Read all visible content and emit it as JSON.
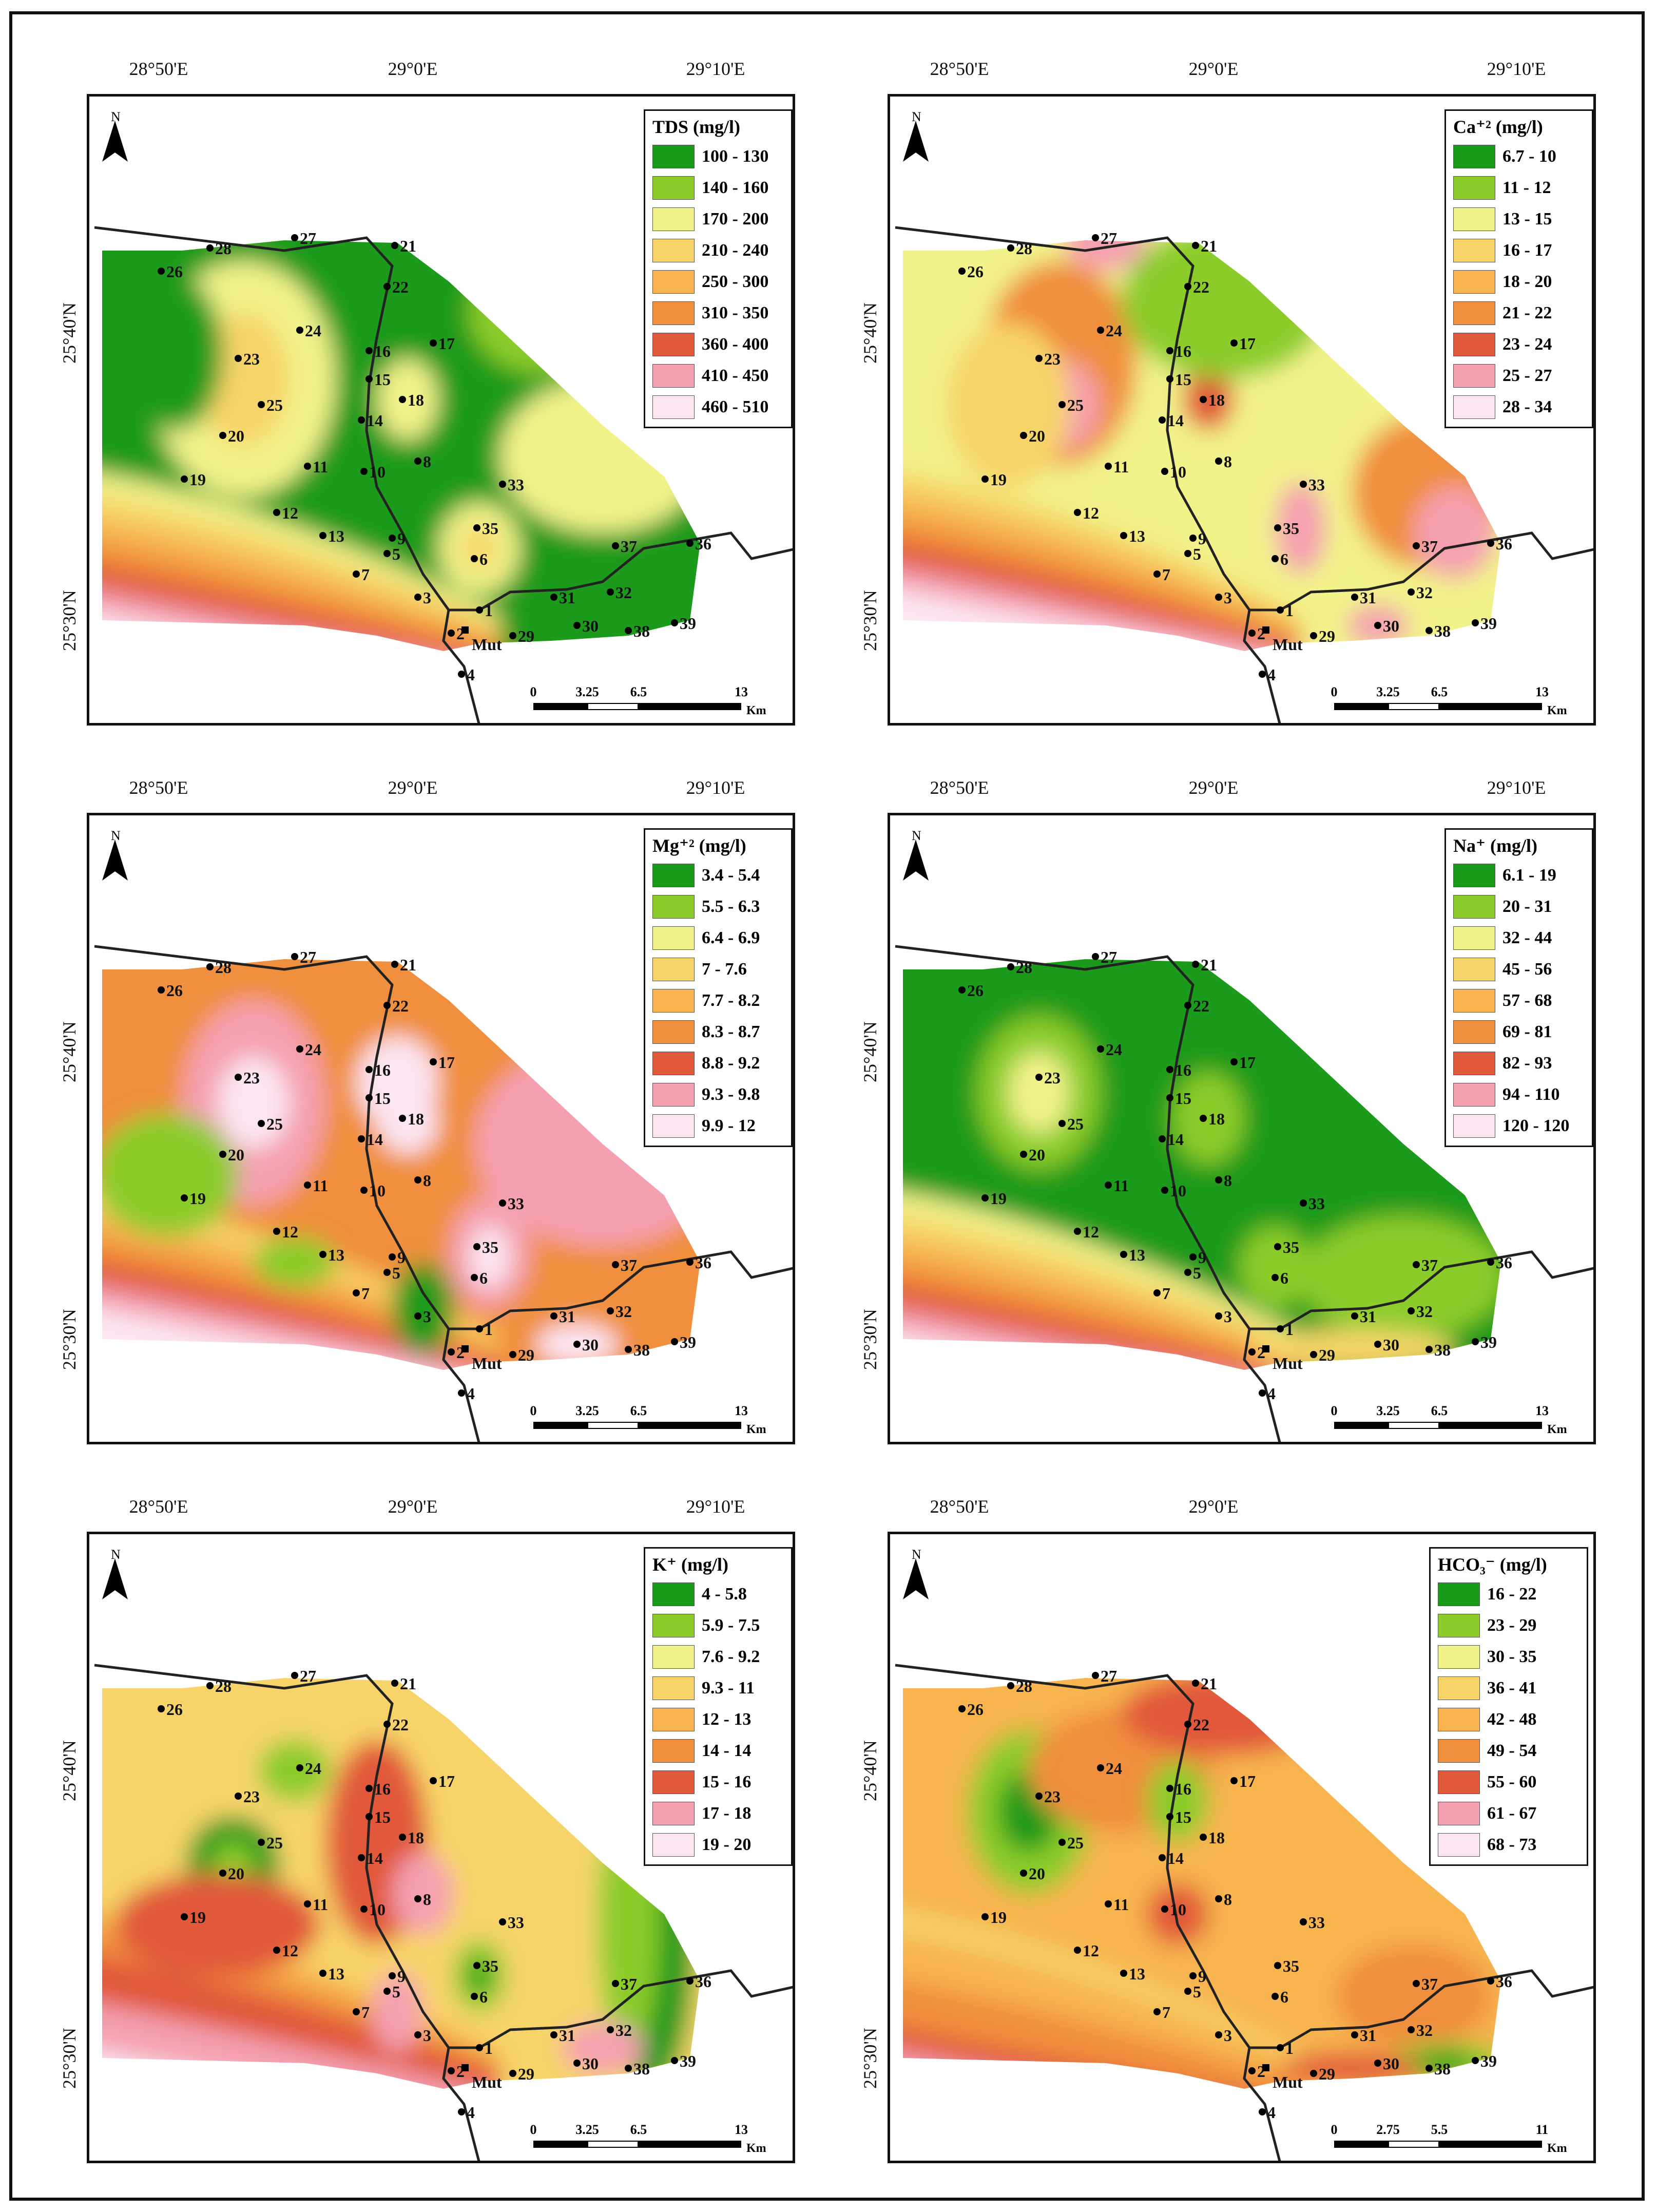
{
  "figure": {
    "town_label": "Mut",
    "north_label": "N",
    "wells": [
      "1",
      "2",
      "3",
      "4",
      "5",
      "6",
      "7",
      "8",
      "9",
      "10",
      "11",
      "12",
      "13",
      "14",
      "15",
      "16",
      "17",
      "18",
      "19",
      "20",
      "21",
      "22",
      "23",
      "24",
      "25",
      "26",
      "27",
      "28",
      "29",
      "30",
      "31",
      "32",
      "33",
      "35",
      "36",
      "37",
      "38",
      "39"
    ],
    "panels": [
      {
        "id": "tds",
        "legend_title": "TDS (mg/l)",
        "lon_labels": [
          "28°50'E",
          "29°0'E",
          "29°10'E"
        ],
        "lat_labels": [
          "25°40'N",
          "25°30'N"
        ],
        "classes": [
          {
            "label": "100 - 130",
            "color": "#1a9a1a"
          },
          {
            "label": "140 - 160",
            "color": "#8ccc2c"
          },
          {
            "label": "170 - 200",
            "color": "#f2f28a"
          },
          {
            "label": "210 - 240",
            "color": "#f6d469"
          },
          {
            "label": "250 - 300",
            "color": "#f7b450"
          },
          {
            "label": "310 - 350",
            "color": "#f08f3c"
          },
          {
            "label": "360 - 400",
            "color": "#e1583a"
          },
          {
            "label": "410 - 450",
            "color": "#f4a0b0"
          },
          {
            "label": "460 - 510",
            "color": "#fce6f2"
          }
        ],
        "scale": {
          "ticks": [
            "0",
            "3.25",
            "6.5",
            "13"
          ],
          "unit": "Km"
        }
      },
      {
        "id": "ca",
        "legend_title": "Ca⁺² (mg/l)",
        "lon_labels": [
          "28°50'E",
          "29°0'E",
          "29°10'E"
        ],
        "lat_labels": [
          "25°40'N",
          "25°30'N"
        ],
        "classes": [
          {
            "label": "6.7 - 10",
            "color": "#1a9a1a"
          },
          {
            "label": "11 - 12",
            "color": "#8ccc2c"
          },
          {
            "label": "13 - 15",
            "color": "#f2f28a"
          },
          {
            "label": "16 - 17",
            "color": "#f6d469"
          },
          {
            "label": "18 - 20",
            "color": "#f7b450"
          },
          {
            "label": "21 - 22",
            "color": "#f08f3c"
          },
          {
            "label": "23 - 24",
            "color": "#e1583a"
          },
          {
            "label": "25 - 27",
            "color": "#f4a0b0"
          },
          {
            "label": "28 - 34",
            "color": "#fce6f2"
          }
        ],
        "scale": {
          "ticks": [
            "0",
            "3.25",
            "6.5",
            "13"
          ],
          "unit": "Km"
        }
      },
      {
        "id": "mg",
        "legend_title": "Mg⁺² (mg/l)",
        "lon_labels": [
          "28°50'E",
          "29°0'E",
          "29°10'E"
        ],
        "lat_labels": [
          "25°40'N",
          "25°30'N"
        ],
        "classes": [
          {
            "label": "3.4 - 5.4",
            "color": "#1a9a1a"
          },
          {
            "label": "5.5 - 6.3",
            "color": "#8ccc2c"
          },
          {
            "label": "6.4 - 6.9",
            "color": "#f2f28a"
          },
          {
            "label": "7 - 7.6",
            "color": "#f6d469"
          },
          {
            "label": "7.7 - 8.2",
            "color": "#f7b450"
          },
          {
            "label": "8.3 - 8.7",
            "color": "#f08f3c"
          },
          {
            "label": "8.8 - 9.2",
            "color": "#e1583a"
          },
          {
            "label": "9.3 - 9.8",
            "color": "#f4a0b0"
          },
          {
            "label": "9.9 - 12",
            "color": "#fce6f2"
          }
        ],
        "scale": {
          "ticks": [
            "0",
            "3.25",
            "6.5",
            "13"
          ],
          "unit": "Km"
        }
      },
      {
        "id": "na",
        "legend_title": "Na⁺ (mg/l)",
        "lon_labels": [
          "28°50'E",
          "29°0'E",
          "29°10'E"
        ],
        "lat_labels": [
          "25°40'N",
          "25°30'N"
        ],
        "classes": [
          {
            "label": "6.1 - 19",
            "color": "#1a9a1a"
          },
          {
            "label": "20 - 31",
            "color": "#8ccc2c"
          },
          {
            "label": "32 - 44",
            "color": "#f2f28a"
          },
          {
            "label": "45 - 56",
            "color": "#f6d469"
          },
          {
            "label": "57 - 68",
            "color": "#f7b450"
          },
          {
            "label": "69 - 81",
            "color": "#f08f3c"
          },
          {
            "label": "82 - 93",
            "color": "#e1583a"
          },
          {
            "label": "94 - 110",
            "color": "#f4a0b0"
          },
          {
            "label": "120 - 120",
            "color": "#fce6f2"
          }
        ],
        "scale": {
          "ticks": [
            "0",
            "3.25",
            "6.5",
            "13"
          ],
          "unit": "Km"
        }
      },
      {
        "id": "k",
        "legend_title": "K⁺ (mg/l)",
        "lon_labels": [
          "28°50'E",
          "29°0'E",
          "29°10'E"
        ],
        "lat_labels": [
          "25°40'N",
          "25°30'N"
        ],
        "classes": [
          {
            "label": "4 - 5.8",
            "color": "#1a9a1a"
          },
          {
            "label": "5.9 - 7.5",
            "color": "#8ccc2c"
          },
          {
            "label": "7.6 - 9.2",
            "color": "#f2f28a"
          },
          {
            "label": "9.3 - 11",
            "color": "#f6d469"
          },
          {
            "label": "12 - 13",
            "color": "#f7b450"
          },
          {
            "label": "14 - 14",
            "color": "#f08f3c"
          },
          {
            "label": "15 - 16",
            "color": "#e1583a"
          },
          {
            "label": "17 - 18",
            "color": "#f4a0b0"
          },
          {
            "label": "19 - 20",
            "color": "#fce6f2"
          }
        ],
        "scale": {
          "ticks": [
            "0",
            "3.25",
            "6.5",
            "13"
          ],
          "unit": "Km"
        }
      },
      {
        "id": "hco3",
        "legend_title": "HCO₃⁻ (mg/l)",
        "lon_labels": [
          "28°50'E",
          "29°0'E"
        ],
        "lat_labels": [
          "25°40'N",
          "25°30'N"
        ],
        "classes": [
          {
            "label": "16 - 22",
            "color": "#1a9a1a"
          },
          {
            "label": "23 - 29",
            "color": "#8ccc2c"
          },
          {
            "label": "30 - 35",
            "color": "#f2f28a"
          },
          {
            "label": "36 - 41",
            "color": "#f6d469"
          },
          {
            "label": "42 - 48",
            "color": "#f7b450"
          },
          {
            "label": "49 - 54",
            "color": "#f08f3c"
          },
          {
            "label": "55 - 60",
            "color": "#e1583a"
          },
          {
            "label": "61 - 67",
            "color": "#f4a0b0"
          },
          {
            "label": "68 - 73",
            "color": "#fce6f2"
          }
        ],
        "scale": {
          "ticks": [
            "0",
            "2.75",
            "5.5",
            "11"
          ],
          "unit": "Km"
        }
      }
    ]
  }
}
